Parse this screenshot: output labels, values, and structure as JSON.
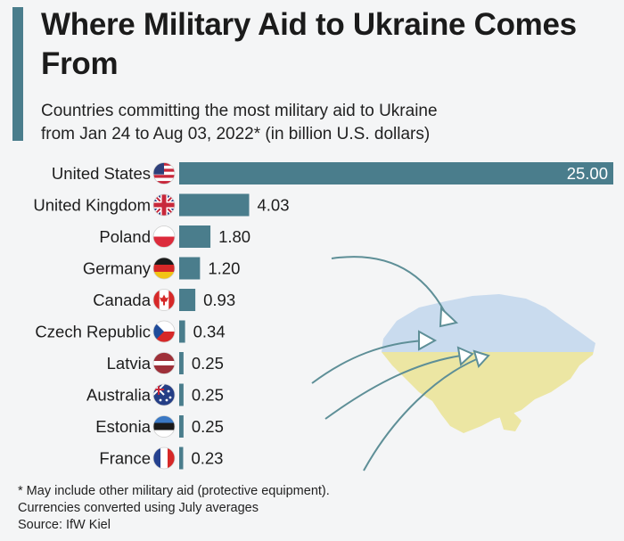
{
  "header": {
    "title": "Where Military Aid to Ukraine Comes From",
    "subtitle_line1": "Countries committing the most military aid to Ukraine",
    "subtitle_line2": "from Jan 24 to Aug 03, 2022* (in billion U.S. dollars)"
  },
  "footer": {
    "note1": "* May include other military aid (protective equipment).",
    "note2": "Currencies converted using July averages",
    "source": "Source: IfW Kiel"
  },
  "colors": {
    "bar": "#4a7d8c",
    "accent": "#4a7d8c",
    "map_blue": "#c9dbee",
    "map_yellow": "#ece6a3"
  },
  "chart_data": {
    "type": "bar",
    "orientation": "horizontal",
    "categories": [
      "United States",
      "United Kingdom",
      "Poland",
      "Germany",
      "Canada",
      "Czech Republic",
      "Latvia",
      "Australia",
      "Estonia",
      "France"
    ],
    "values": [
      25.0,
      4.03,
      1.8,
      1.2,
      0.93,
      0.34,
      0.25,
      0.25,
      0.25,
      0.23
    ],
    "labels": [
      "25.00",
      "4.03",
      "1.80",
      "1.20",
      "0.93",
      "0.34",
      "0.25",
      "0.25",
      "0.25",
      "0.23"
    ],
    "flags": [
      "us-flag-icon",
      "uk-flag-icon",
      "poland-flag-icon",
      "germany-flag-icon",
      "canada-flag-icon",
      "czech-flag-icon",
      "latvia-flag-icon",
      "australia-flag-icon",
      "estonia-flag-icon",
      "france-flag-icon"
    ],
    "xlim": [
      0,
      25
    ],
    "grid": false,
    "legend": "none"
  }
}
